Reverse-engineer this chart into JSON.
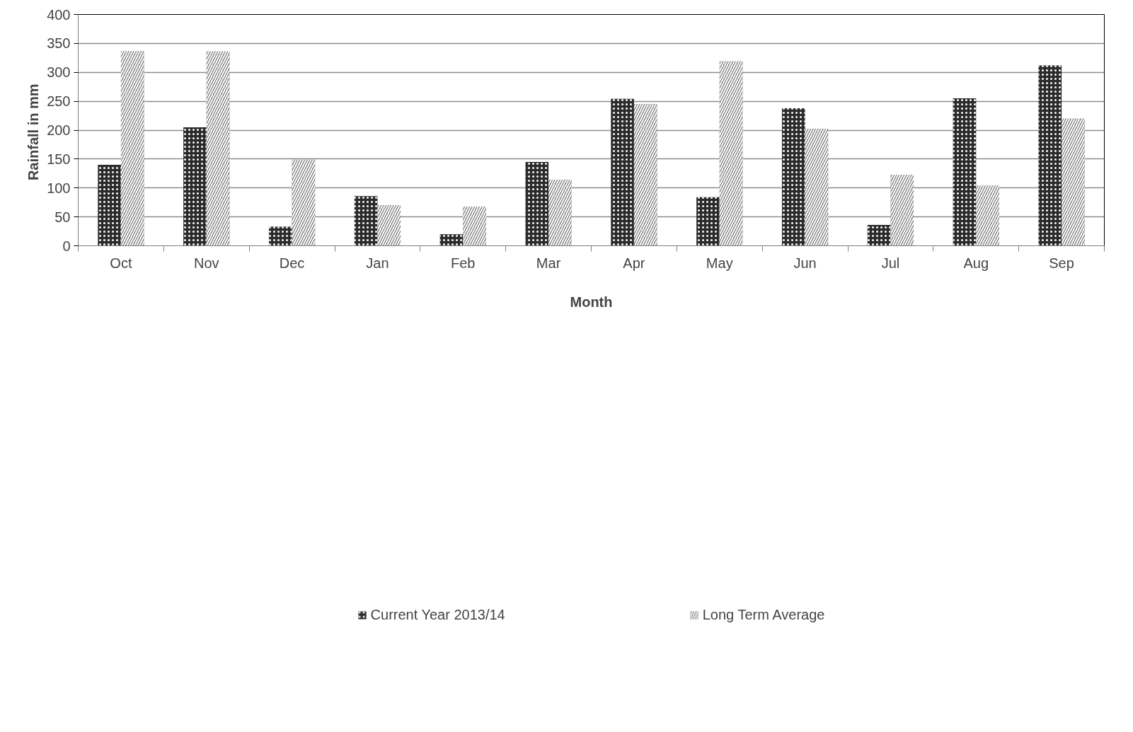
{
  "chart_data": {
    "type": "bar",
    "xlabel": "Month",
    "ylabel": "Rainfall  in mm",
    "categories": [
      "Oct",
      "Nov",
      "Dec",
      "Jan",
      "Feb",
      "Mar",
      "Apr",
      "May",
      "Jun",
      "Jul",
      "Aug",
      "Sep"
    ],
    "series": [
      {
        "name": "Current Year 2013/14",
        "color": "#2b2b2b",
        "values": [
          140,
          205,
          33,
          86,
          20,
          145,
          254,
          84,
          238,
          36,
          255,
          312
        ]
      },
      {
        "name": "Long Term Average",
        "color": "#6e6e6e",
        "values": [
          337,
          336,
          149,
          70,
          68,
          114,
          245,
          319,
          202,
          123,
          104,
          220
        ]
      }
    ],
    "ylim": [
      0,
      400
    ],
    "yticks": [
      0,
      50,
      100,
      150,
      200,
      250,
      300,
      350,
      400
    ],
    "grid": "y",
    "legend": "bottom"
  }
}
